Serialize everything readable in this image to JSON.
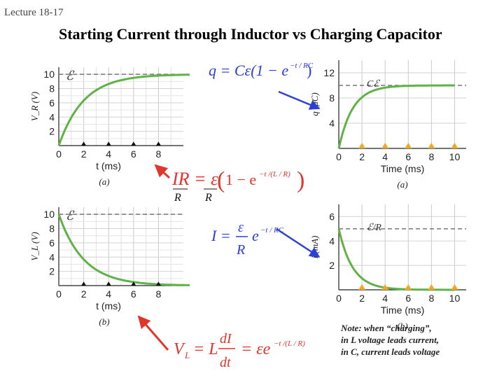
{
  "header": {
    "lecture": "Lecture 18-17",
    "title": "Starting Current through Inductor vs Charging Capacitor"
  },
  "note": {
    "line1": "Note: when “charging”,",
    "line2": "in L voltage leads current,",
    "line3": "in C, current leads voltage"
  },
  "equations": {
    "capacitor_charge": "q = Cε(1 − e⁻ᵗᐟᴿᶜ)",
    "inductor_ir": "IR = ε(1 − e⁻ᵗᐟ⁽ᴸᐟᴿ⁾)",
    "capacitor_current": "I = (ε/R) e⁻ᵗᐟᴿᶜ",
    "inductor_voltage": "V_L = L dI/dt = εe⁻ᵗᐟ⁽ᴸᐟᴿ⁾"
  },
  "colors": {
    "curve": "#5fb246",
    "dashed": "#777777",
    "arrow_red": "#e0362c",
    "arrow_blue": "#2a3fd6",
    "marker_orange": "#f5a623",
    "marker_black": "#111111",
    "formula_red": "#e0362c",
    "formula_blue": "#2a3fd6"
  },
  "chart_data": [
    {
      "type": "line",
      "panel": "VR",
      "ylabel": "V_R (V)",
      "xlabel": "t (ms)",
      "caption": "(a)",
      "asymptote_label": "ℰ",
      "x_ticks": [
        "0",
        "2",
        "4",
        "6",
        "8"
      ],
      "y_ticks": [
        "2",
        "4",
        "6",
        "8",
        "10"
      ],
      "xlim": [
        0,
        10
      ],
      "ylim": [
        0,
        11
      ],
      "asymptote": 10,
      "tau": 2,
      "shape": "rise",
      "markers": [
        2,
        4,
        6,
        8
      ],
      "marker_style": "black-triangle"
    },
    {
      "type": "line",
      "panel": "VL",
      "ylabel": "V_L (V)",
      "xlabel": "t (ms)",
      "caption": "(b)",
      "asymptote_label": "ℰ",
      "x_ticks": [
        "0",
        "2",
        "4",
        "6",
        "8"
      ],
      "y_ticks": [
        "2",
        "4",
        "6",
        "8",
        "10"
      ],
      "xlim": [
        0,
        10
      ],
      "ylim": [
        0,
        11
      ],
      "asymptote": 10,
      "tau": 2,
      "shape": "decay",
      "markers": [
        2,
        4,
        6,
        8
      ],
      "marker_style": "black-triangle"
    },
    {
      "type": "line",
      "panel": "q",
      "ylabel": "q (μC)",
      "xlabel": "Time (ms)",
      "caption": "(a)",
      "asymptote_label": "Cℰ",
      "x_ticks": [
        "0",
        "2",
        "4",
        "6",
        "8",
        "10"
      ],
      "y_ticks": [
        "4",
        "8",
        "12"
      ],
      "xlim": [
        0,
        11
      ],
      "ylim": [
        0,
        14
      ],
      "asymptote": 10,
      "tau": 1.2,
      "shape": "rise",
      "markers": [
        2,
        4,
        6,
        8,
        10
      ],
      "marker_style": "orange-triangle"
    },
    {
      "type": "line",
      "panel": "i",
      "ylabel": "i (mA)",
      "xlabel": "Time (ms)",
      "caption": "(b)",
      "asymptote_label": "ℰ/R",
      "x_ticks": [
        "0",
        "2",
        "4",
        "6",
        "8",
        "10"
      ],
      "y_ticks": [
        "2",
        "4",
        "6"
      ],
      "xlim": [
        0,
        11
      ],
      "ylim": [
        0,
        7
      ],
      "asymptote": 5,
      "tau": 1.2,
      "shape": "decay",
      "markers": [
        2,
        4,
        6,
        8,
        10
      ],
      "marker_style": "orange-triangle"
    }
  ]
}
